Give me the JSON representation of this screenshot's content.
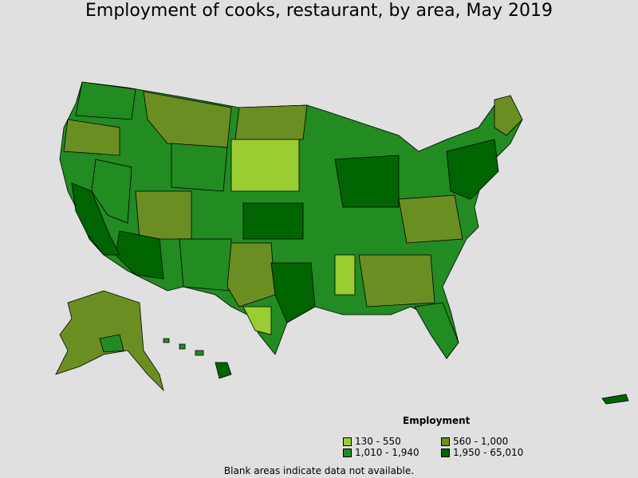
{
  "title": "Employment of cooks, restaurant, by area, May 2019",
  "legend": {
    "title": "Employment",
    "items": [
      {
        "label": "130 - 550",
        "color": "#9acd32"
      },
      {
        "label": "560 - 1,000",
        "color": "#6b8e23"
      },
      {
        "label": "1,010 - 1,940",
        "color": "#228b22"
      },
      {
        "label": "1,950 - 65,010",
        "color": "#006400"
      }
    ]
  },
  "note": "Blank areas indicate data not available."
}
